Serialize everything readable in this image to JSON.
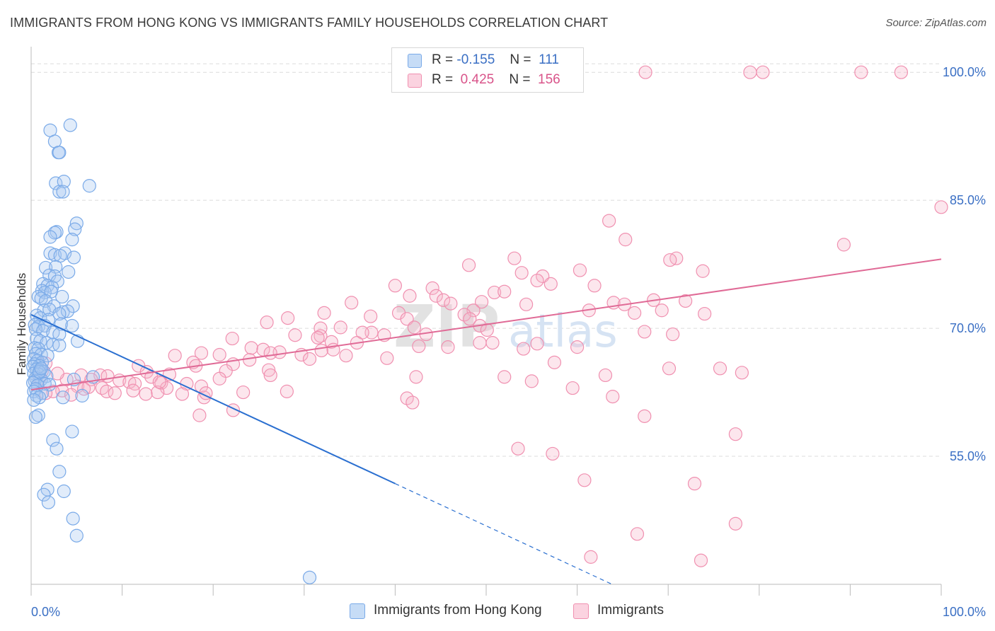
{
  "title": "IMMIGRANTS FROM HONG KONG VS IMMIGRANTS FAMILY HOUSEHOLDS CORRELATION CHART",
  "source": "Source: ZipAtlas.com",
  "watermark": "ZIPatlas",
  "legend": {
    "rows": [
      {
        "r_label": "R =",
        "r_value": "-0.155",
        "n_label": "N =",
        "n_value": "111",
        "color": "#a8c8f0"
      },
      {
        "r_label": "R =",
        "r_value": "0.425",
        "n_label": "N =",
        "n_value": "156",
        "color": "#f5b6cb"
      }
    ]
  },
  "bottom_legend": [
    {
      "label": "Immigrants from Hong Kong",
      "color": "#a8c8f0"
    },
    {
      "label": "Immigrants",
      "color": "#f5b6cb"
    }
  ],
  "chart_data": {
    "type": "scatter",
    "ylabel": "Family Households",
    "xlim": [
      0,
      100
    ],
    "ylim": [
      40,
      103
    ],
    "x_tick_labels": [
      "0.0%",
      "100.0%"
    ],
    "y_ticks": [
      {
        "value": 55,
        "label": "55.0%"
      },
      {
        "value": 70,
        "label": "70.0%"
      },
      {
        "value": 85,
        "label": "85.0%"
      },
      {
        "value": 100,
        "label": "100.0%"
      }
    ],
    "grid": true,
    "series": [
      {
        "name": "Immigrants from Hong Kong",
        "color": "#7aaae8",
        "line_color": "#2a6fd0",
        "trend": {
          "x0": 0,
          "y0": 71.6,
          "x1": 40,
          "y1": 51.8,
          "dash_to_x": 64
        },
        "points": [
          [
            4.3,
            93.8
          ],
          [
            2.1,
            93.2
          ],
          [
            2.6,
            91.9
          ],
          [
            3.0,
            90.6
          ],
          [
            3.1,
            90.6
          ],
          [
            2.7,
            87.0
          ],
          [
            3.6,
            87.2
          ],
          [
            6.4,
            86.7
          ],
          [
            3.1,
            86.0
          ],
          [
            3.5,
            86.0
          ],
          [
            5.0,
            82.3
          ],
          [
            4.8,
            81.6
          ],
          [
            2.8,
            81.3
          ],
          [
            2.6,
            81.2
          ],
          [
            2.1,
            80.7
          ],
          [
            4.5,
            80.4
          ],
          [
            2.1,
            78.8
          ],
          [
            2.6,
            78.6
          ],
          [
            3.7,
            78.8
          ],
          [
            4.7,
            78.3
          ],
          [
            3.2,
            78.5
          ],
          [
            1.6,
            77.1
          ],
          [
            2.7,
            77.2
          ],
          [
            4.1,
            76.6
          ],
          [
            2.0,
            76.2
          ],
          [
            2.6,
            76.1
          ],
          [
            2.9,
            75.5
          ],
          [
            1.3,
            75.2
          ],
          [
            1.8,
            75.0
          ],
          [
            2.3,
            74.8
          ],
          [
            1.2,
            74.4
          ],
          [
            1.5,
            74.2
          ],
          [
            2.2,
            74.3
          ],
          [
            0.8,
            73.7
          ],
          [
            1.1,
            73.5
          ],
          [
            3.4,
            73.7
          ],
          [
            1.6,
            73.2
          ],
          [
            2.5,
            72.6
          ],
          [
            4.6,
            72.6
          ],
          [
            1.4,
            72.1
          ],
          [
            2.0,
            72.2
          ],
          [
            3.5,
            71.9
          ],
          [
            4.0,
            72.0
          ],
          [
            3.1,
            71.7
          ],
          [
            0.6,
            71.5
          ],
          [
            1.0,
            71.2
          ],
          [
            1.9,
            71.0
          ],
          [
            3.3,
            70.5
          ],
          [
            0.4,
            70.4
          ],
          [
            0.8,
            70.2
          ],
          [
            1.5,
            70.3
          ],
          [
            4.5,
            70.3
          ],
          [
            0.5,
            69.9
          ],
          [
            1.3,
            69.7
          ],
          [
            2.4,
            69.5
          ],
          [
            3.1,
            69.3
          ],
          [
            0.6,
            68.8
          ],
          [
            1.0,
            68.5
          ],
          [
            5.1,
            68.5
          ],
          [
            1.7,
            68.3
          ],
          [
            2.4,
            68.1
          ],
          [
            3.1,
            68.0
          ],
          [
            0.4,
            67.7
          ],
          [
            0.8,
            67.6
          ],
          [
            0.5,
            67.0
          ],
          [
            1.1,
            66.9
          ],
          [
            1.8,
            66.8
          ],
          [
            0.3,
            66.4
          ],
          [
            0.7,
            66.2
          ],
          [
            1.2,
            66.0
          ],
          [
            0.4,
            65.8
          ],
          [
            0.9,
            65.6
          ],
          [
            0.2,
            65.5
          ],
          [
            0.6,
            65.2
          ],
          [
            1.0,
            65.1
          ],
          [
            1.4,
            64.9
          ],
          [
            0.3,
            64.7
          ],
          [
            0.8,
            64.6
          ],
          [
            1.7,
            64.4
          ],
          [
            0.5,
            64.2
          ],
          [
            1.1,
            64.0
          ],
          [
            0.4,
            63.8
          ],
          [
            0.2,
            63.6
          ],
          [
            1.5,
            63.5
          ],
          [
            2.0,
            63.4
          ],
          [
            0.7,
            63.3
          ],
          [
            0.5,
            62.9
          ],
          [
            0.3,
            62.6
          ],
          [
            1.2,
            62.4
          ],
          [
            0.6,
            62.1
          ],
          [
            0.9,
            61.9
          ],
          [
            3.5,
            61.9
          ],
          [
            5.6,
            62.1
          ],
          [
            0.3,
            61.6
          ],
          [
            0.8,
            59.8
          ],
          [
            0.5,
            59.6
          ],
          [
            4.5,
            57.9
          ],
          [
            2.4,
            56.9
          ],
          [
            2.8,
            55.9
          ],
          [
            3.1,
            53.2
          ],
          [
            1.8,
            51.1
          ],
          [
            3.6,
            50.9
          ],
          [
            1.4,
            50.5
          ],
          [
            1.9,
            49.6
          ],
          [
            4.6,
            47.7
          ],
          [
            5.0,
            45.7
          ],
          [
            30.6,
            40.8
          ],
          [
            6.8,
            64.3
          ],
          [
            4.7,
            64.0
          ],
          [
            0.9,
            64.9
          ],
          [
            1.1,
            65.3
          ]
        ]
      },
      {
        "name": "Immigrants",
        "color": "#f090b0",
        "line_color": "#e06a96",
        "trend": {
          "x0": 0,
          "y0": 62.8,
          "x1": 100,
          "y1": 78.1
        },
        "points": [
          [
            67.5,
            100.0
          ],
          [
            79.0,
            100.0
          ],
          [
            80.4,
            100.0
          ],
          [
            91.2,
            100.0
          ],
          [
            95.6,
            100.0
          ],
          [
            100,
            84.2
          ],
          [
            63.5,
            82.6
          ],
          [
            65.3,
            80.4
          ],
          [
            89.3,
            79.8
          ],
          [
            53.1,
            78.2
          ],
          [
            70.9,
            78.2
          ],
          [
            70.2,
            78.0
          ],
          [
            48.1,
            77.4
          ],
          [
            60.3,
            76.8
          ],
          [
            73.8,
            76.7
          ],
          [
            53.9,
            76.5
          ],
          [
            56.2,
            76.1
          ],
          [
            55.6,
            75.6
          ],
          [
            57.1,
            75.2
          ],
          [
            40.0,
            75.0
          ],
          [
            61.9,
            75.0
          ],
          [
            44.1,
            74.7
          ],
          [
            50.9,
            74.2
          ],
          [
            52.0,
            74.3
          ],
          [
            41.6,
            73.8
          ],
          [
            44.5,
            73.8
          ],
          [
            45.3,
            73.3
          ],
          [
            49.5,
            73.1
          ],
          [
            35.2,
            73.0
          ],
          [
            46.1,
            72.9
          ],
          [
            64.0,
            73.0
          ],
          [
            68.4,
            73.3
          ],
          [
            71.9,
            73.2
          ],
          [
            65.2,
            72.8
          ],
          [
            54.4,
            72.8
          ],
          [
            61.3,
            72.1
          ],
          [
            48.6,
            72.1
          ],
          [
            66.3,
            71.8
          ],
          [
            69.3,
            72.1
          ],
          [
            32.2,
            71.8
          ],
          [
            40.4,
            71.8
          ],
          [
            74.0,
            71.7
          ],
          [
            37.3,
            71.4
          ],
          [
            47.6,
            71.6
          ],
          [
            28.2,
            71.2
          ],
          [
            25.9,
            70.7
          ],
          [
            48.2,
            71.1
          ],
          [
            41.3,
            71.1
          ],
          [
            49.3,
            70.3
          ],
          [
            42.1,
            70.1
          ],
          [
            31.8,
            70.0
          ],
          [
            34.0,
            70.1
          ],
          [
            50.1,
            69.8
          ],
          [
            67.4,
            69.6
          ],
          [
            37.4,
            69.5
          ],
          [
            36.4,
            69.5
          ],
          [
            29.0,
            69.2
          ],
          [
            31.8,
            69.1
          ],
          [
            70.5,
            69.3
          ],
          [
            43.4,
            69.3
          ],
          [
            38.8,
            69.2
          ],
          [
            31.5,
            68.9
          ],
          [
            22.1,
            68.8
          ],
          [
            33.0,
            68.4
          ],
          [
            35.8,
            68.3
          ],
          [
            49.3,
            68.3
          ],
          [
            50.7,
            68.3
          ],
          [
            42.6,
            67.9
          ],
          [
            45.8,
            67.8
          ],
          [
            55.6,
            68.2
          ],
          [
            60.0,
            67.8
          ],
          [
            54.1,
            67.6
          ],
          [
            24.2,
            67.7
          ],
          [
            33.2,
            67.5
          ],
          [
            31.9,
            67.4
          ],
          [
            25.5,
            67.5
          ],
          [
            27.3,
            67.2
          ],
          [
            18.7,
            67.1
          ],
          [
            20.7,
            66.9
          ],
          [
            34.6,
            66.8
          ],
          [
            26.3,
            67.1
          ],
          [
            29.7,
            66.9
          ],
          [
            15.8,
            66.8
          ],
          [
            30.6,
            66.4
          ],
          [
            39.1,
            66.5
          ],
          [
            24.0,
            66.3
          ],
          [
            17.8,
            66.0
          ],
          [
            57.5,
            66.0
          ],
          [
            22.2,
            65.8
          ],
          [
            18.1,
            65.6
          ],
          [
            11.8,
            65.6
          ],
          [
            70.1,
            65.3
          ],
          [
            75.7,
            65.3
          ],
          [
            21.4,
            65.0
          ],
          [
            26.1,
            65.1
          ],
          [
            15.2,
            64.6
          ],
          [
            12.7,
            64.9
          ],
          [
            26.3,
            64.5
          ],
          [
            5.5,
            64.5
          ],
          [
            7.6,
            64.5
          ],
          [
            8.4,
            64.4
          ],
          [
            13.2,
            64.3
          ],
          [
            20.7,
            64.1
          ],
          [
            6.6,
            64.0
          ],
          [
            3.9,
            64.0
          ],
          [
            9.7,
            63.9
          ],
          [
            10.8,
            63.7
          ],
          [
            11.4,
            63.5
          ],
          [
            14.3,
            63.6
          ],
          [
            17.1,
            63.5
          ],
          [
            18.7,
            63.2
          ],
          [
            5.1,
            63.2
          ],
          [
            6.3,
            63.1
          ],
          [
            7.8,
            63.0
          ],
          [
            14.9,
            63.0
          ],
          [
            5.8,
            62.9
          ],
          [
            8.3,
            62.6
          ],
          [
            11.2,
            62.7
          ],
          [
            13.9,
            62.5
          ],
          [
            3.4,
            62.7
          ],
          [
            9.2,
            62.4
          ],
          [
            12.6,
            62.3
          ],
          [
            16.6,
            62.3
          ],
          [
            4.4,
            62.2
          ],
          [
            2.4,
            62.6
          ],
          [
            1.6,
            62.4
          ],
          [
            1.2,
            65.0
          ],
          [
            2.9,
            64.7
          ],
          [
            0.9,
            64.1
          ],
          [
            1.6,
            65.9
          ],
          [
            42.3,
            64.3
          ],
          [
            52.0,
            64.3
          ],
          [
            59.5,
            63.0
          ],
          [
            55.0,
            63.8
          ],
          [
            63.1,
            64.5
          ],
          [
            78.1,
            64.8
          ],
          [
            63.9,
            62.0
          ],
          [
            19.0,
            61.9
          ],
          [
            41.3,
            61.8
          ],
          [
            41.9,
            61.3
          ],
          [
            18.5,
            59.8
          ],
          [
            67.4,
            59.7
          ],
          [
            77.4,
            57.6
          ],
          [
            53.5,
            55.9
          ],
          [
            57.3,
            55.3
          ],
          [
            60.8,
            52.2
          ],
          [
            72.9,
            51.8
          ],
          [
            77.4,
            47.1
          ],
          [
            66.6,
            45.9
          ],
          [
            73.6,
            42.8
          ],
          [
            61.5,
            43.2
          ],
          [
            14.1,
            63.7
          ],
          [
            28.1,
            62.6
          ],
          [
            22.2,
            60.4
          ],
          [
            19.2,
            62.4
          ],
          [
            23.3,
            62.5
          ]
        ]
      }
    ]
  }
}
